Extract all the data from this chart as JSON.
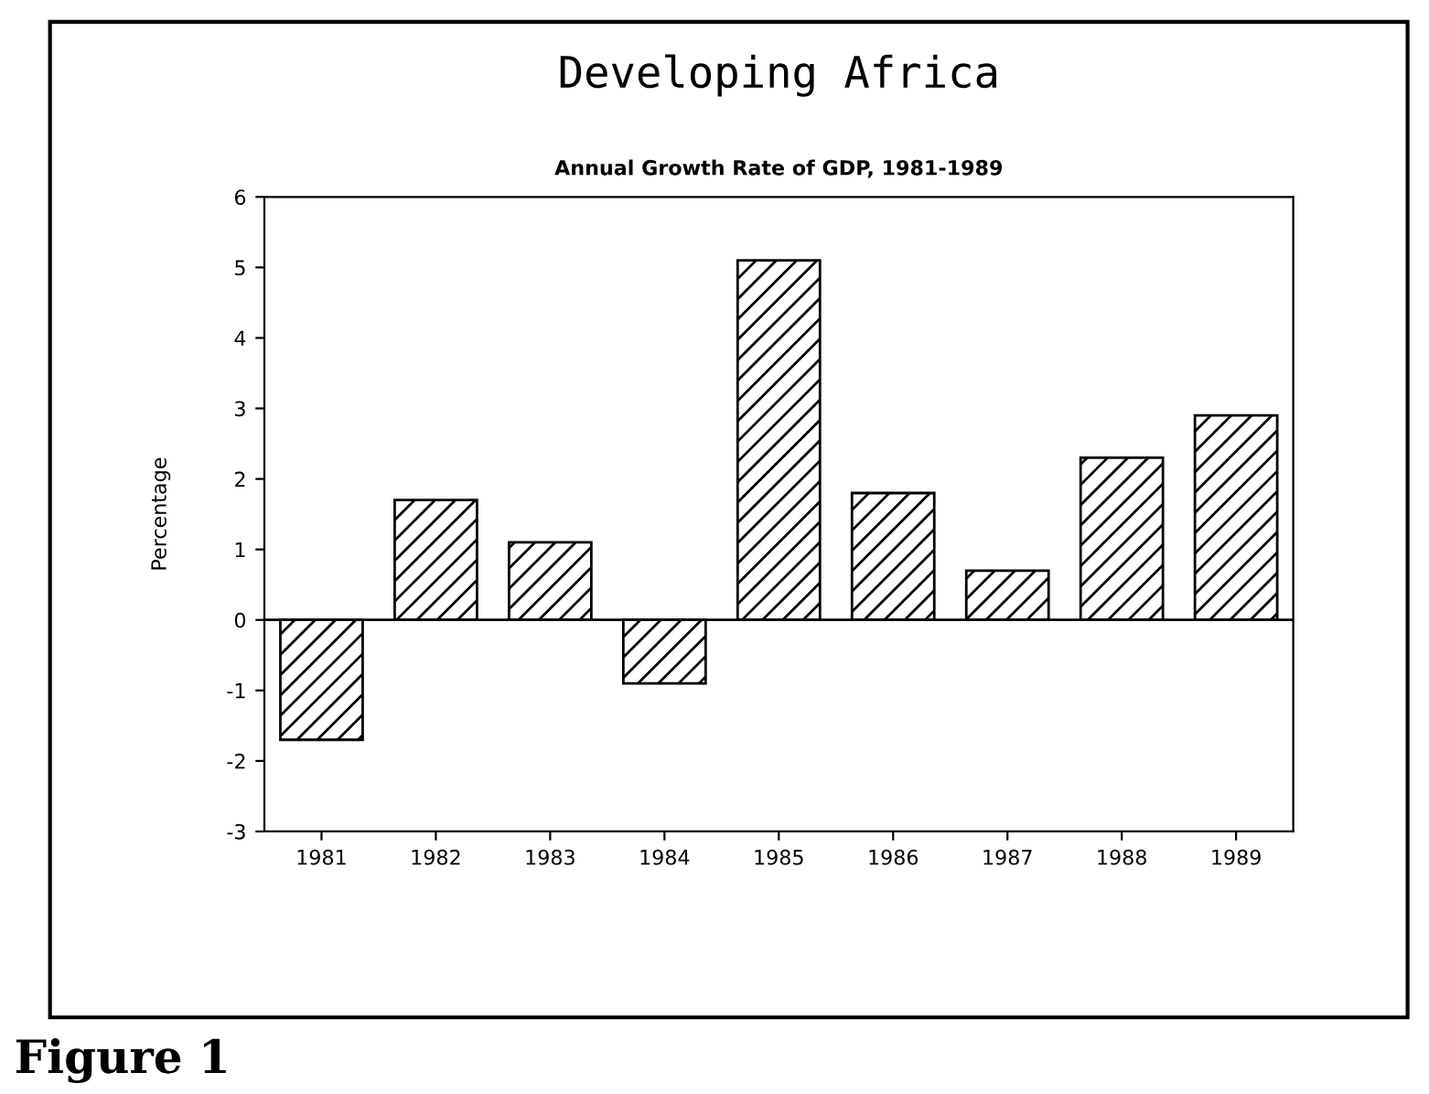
{
  "chart_data": {
    "type": "bar",
    "title": "Developing Africa",
    "subtitle": "Annual Growth Rate of GDP, 1981-1989",
    "ylabel": "Percentage",
    "categories": [
      "1981",
      "1982",
      "1983",
      "1984",
      "1985",
      "1986",
      "1987",
      "1988",
      "1989"
    ],
    "values": [
      -1.7,
      1.7,
      1.1,
      -0.9,
      5.1,
      1.8,
      0.7,
      2.3,
      2.9
    ],
    "color": "#000000",
    "ref_lines": [
      {
        "axis": "y",
        "value": 0,
        "color": "#000000"
      }
    ],
    "ylim": [
      -3,
      6
    ],
    "yticks": [
      -3,
      -2,
      -1,
      0,
      1,
      2,
      3,
      4,
      5,
      6
    ],
    "grid": false,
    "annotations": [
      "Figure 1"
    ]
  }
}
